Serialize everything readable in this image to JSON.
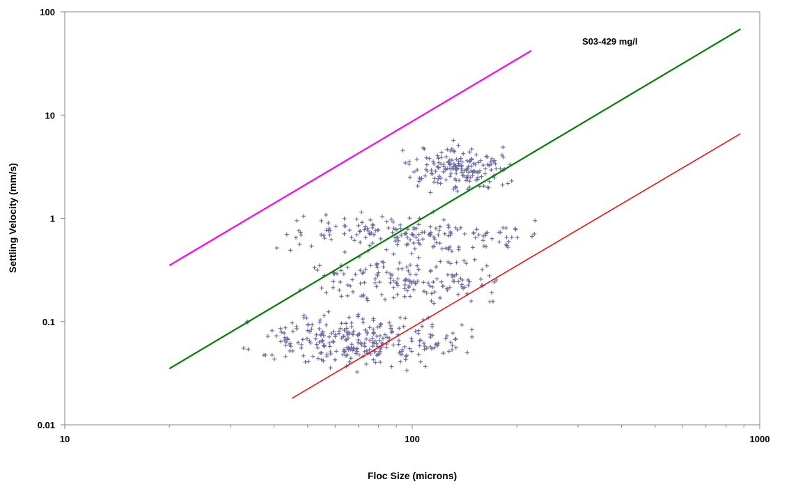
{
  "chart_data": {
    "type": "scatter",
    "title": "",
    "xlabel": "Floc Size (microns)",
    "ylabel": "Settling Velocity (mm/s)",
    "xscale": "log",
    "yscale": "log",
    "xlim": [
      10,
      1000
    ],
    "ylim": [
      0.01,
      100
    ],
    "x_tick_labels": [
      "10",
      "100",
      "1000"
    ],
    "y_tick_labels": [
      "0.01",
      "0.1",
      "1",
      "10",
      "100"
    ],
    "grid": false,
    "legend": "none",
    "annotations": [
      {
        "text": "S03-429 mg/l"
      }
    ],
    "scatter": {
      "marker": "+",
      "color": "#6b6ba8",
      "point_count": 800,
      "clusters": [
        {
          "x_range": [
            90,
            200
          ],
          "y_range": [
            1.6,
            6.0
          ],
          "weight": 0.22
        },
        {
          "x_range": [
            40,
            240
          ],
          "y_range": [
            0.38,
            1.3
          ],
          "weight": 0.22
        },
        {
          "x_range": [
            45,
            200
          ],
          "y_range": [
            0.12,
            0.5
          ],
          "weight": 0.2
        },
        {
          "x_range": [
            30,
            160
          ],
          "y_range": [
            0.03,
            0.14
          ],
          "weight": 0.36
        }
      ]
    },
    "lines": [
      {
        "color": "#ff00ff",
        "x": [
          20,
          220
        ],
        "y": [
          0.35,
          42
        ]
      },
      {
        "color": "#008000",
        "x": [
          20,
          880
        ],
        "y": [
          0.035,
          68
        ]
      },
      {
        "color": "#ff0000",
        "x": [
          45,
          880
        ],
        "y": [
          0.018,
          6.6
        ]
      }
    ]
  }
}
